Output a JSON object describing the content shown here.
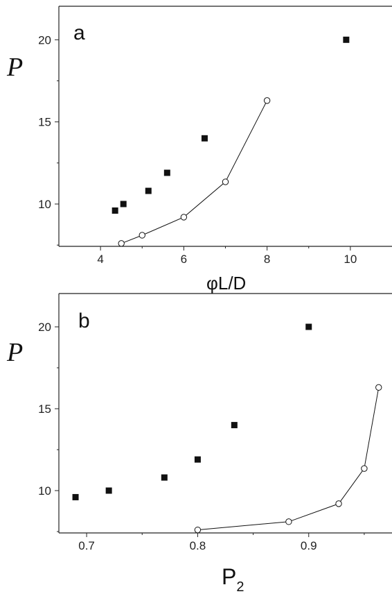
{
  "chart_data": [
    {
      "type": "scatter",
      "panel_label": "a",
      "ylabel": "P",
      "xlabel": "φL/D",
      "xlim": [
        3,
        11
      ],
      "ylim": [
        7.5,
        22
      ],
      "xticks": [
        "4",
        "6",
        "8",
        "10"
      ],
      "yticks": [
        "10",
        "15",
        "20"
      ],
      "series": [
        {
          "marker": "filled-square",
          "color": "#111111",
          "line": false,
          "points": [
            [
              4.35,
              9.6
            ],
            [
              4.55,
              10.0
            ],
            [
              5.15,
              10.8
            ],
            [
              5.6,
              11.9
            ],
            [
              6.5,
              14.0
            ],
            [
              9.9,
              20.0
            ]
          ]
        },
        {
          "marker": "open-circle",
          "color": "#111111",
          "line": true,
          "points": [
            [
              4.5,
              7.6
            ],
            [
              5.0,
              8.1
            ],
            [
              6.0,
              9.2
            ],
            [
              7.0,
              11.35
            ],
            [
              8.0,
              16.3
            ]
          ]
        }
      ]
    },
    {
      "type": "scatter",
      "panel_label": "b",
      "ylabel": "P",
      "xlabel": "P",
      "xlabel_sub": "2",
      "xlim": [
        0.675,
        0.975
      ],
      "ylim": [
        7.5,
        22
      ],
      "xticks": [
        "0.7",
        "0.8",
        "0.9"
      ],
      "yticks": [
        "10",
        "15",
        "20"
      ],
      "series": [
        {
          "marker": "filled-square",
          "color": "#111111",
          "line": false,
          "points": [
            [
              0.69,
              9.6
            ],
            [
              0.72,
              10.0
            ],
            [
              0.77,
              10.8
            ],
            [
              0.8,
              11.9
            ],
            [
              0.833,
              14.0
            ],
            [
              0.9,
              20.0
            ]
          ]
        },
        {
          "marker": "open-circle",
          "color": "#111111",
          "line": true,
          "points": [
            [
              0.8,
              7.6
            ],
            [
              0.882,
              8.1
            ],
            [
              0.927,
              9.2
            ],
            [
              0.95,
              11.35
            ],
            [
              0.963,
              16.3
            ]
          ]
        }
      ]
    }
  ]
}
